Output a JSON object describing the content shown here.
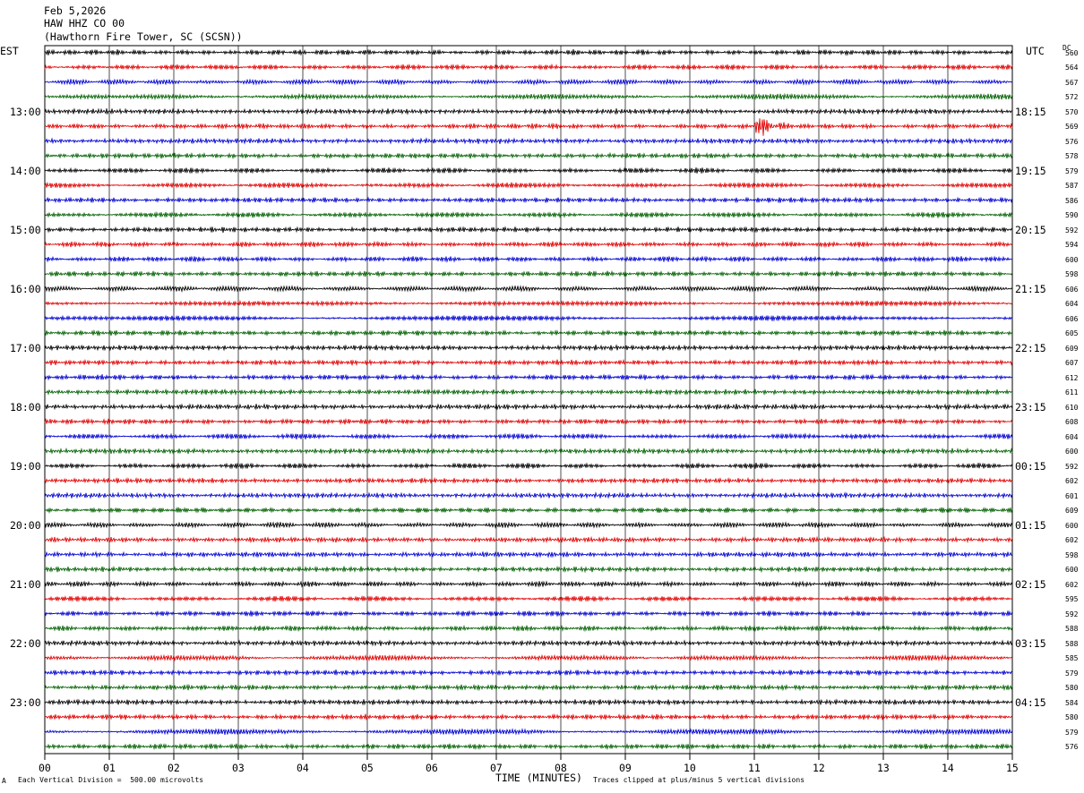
{
  "header": {
    "date": "Feb 5,2026",
    "channel": "HAW HHZ CO 00",
    "site": "(Hawthorn Fire Tower, SC (SCSN))"
  },
  "axes": {
    "left_timezone": "EST",
    "right_timezone": "UTC",
    "dc_label": "DC",
    "x_label": "TIME (MINUTES)",
    "x_ticks": [
      "00",
      "01",
      "02",
      "03",
      "04",
      "05",
      "06",
      "07",
      "08",
      "09",
      "10",
      "11",
      "12",
      "13",
      "14",
      "15"
    ],
    "left_hour_labels": [
      "13:00",
      "14:00",
      "15:00",
      "16:00",
      "17:00",
      "18:00",
      "19:00",
      "20:00",
      "21:00",
      "22:00",
      "23:00"
    ],
    "right_hour_labels": [
      "18:15",
      "19:15",
      "20:15",
      "21:15",
      "22:15",
      "23:15",
      "00:15",
      "01:15",
      "02:15",
      "03:15",
      "04:15"
    ]
  },
  "footer": {
    "mark": "A",
    "scale_note": "Each Vertical Division =  500.00 microvolts",
    "clip_note": "Traces clipped at plus/minus 5 vertical divisions"
  },
  "chart_data": {
    "type": "line",
    "description_free": true,
    "x_range": [
      0,
      15
    ],
    "trace_count": 48,
    "first_labeled_trace_index": 4,
    "traces_per_hour": 4,
    "trace_colors": [
      "#000000",
      "#e00000",
      "#0000d0",
      "#006000"
    ],
    "dc_values": [
      "560",
      "564",
      "567",
      "572",
      "570",
      "569",
      "576",
      "578",
      "579",
      "587",
      "586",
      "590",
      "592",
      "594",
      "600",
      "598",
      "606",
      "604",
      "606",
      "605",
      "609",
      "607",
      "612",
      "611",
      "610",
      "608",
      "604",
      "600",
      "592",
      "602",
      "601",
      "609",
      "600",
      "602",
      "598",
      "600",
      "602",
      "595",
      "592",
      "588",
      "588",
      "585",
      "579",
      "580",
      "584",
      "580",
      "579",
      "576"
    ],
    "event": {
      "trace_index": 5,
      "start_minute": 11.0,
      "end_minute": 11.7
    }
  }
}
